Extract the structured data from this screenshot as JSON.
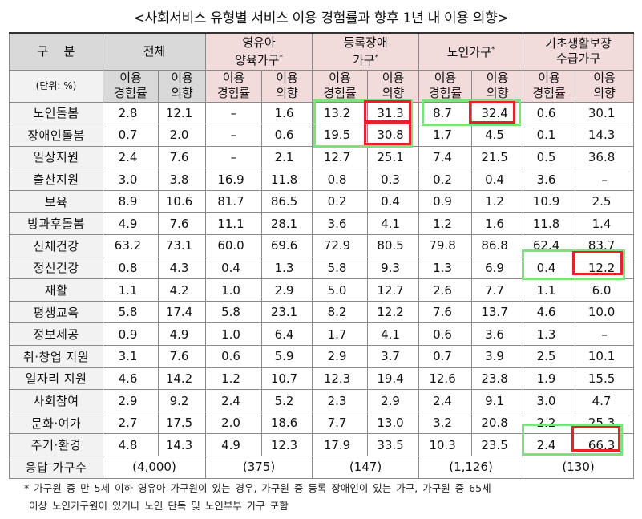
{
  "title": "<사회서비스 유형별 서비스 이용 경험률과 향후 1년 내 이용 의향>",
  "header": {
    "category": "구    분",
    "unit": "(단위: %)",
    "groups": [
      {
        "line1": "전체",
        "line2": "",
        "mark": ""
      },
      {
        "line1": "영유아",
        "line2": "양육가구",
        "mark": "*"
      },
      {
        "line1": "등록장애",
        "line2": "가구",
        "mark": "*"
      },
      {
        "line1": "노인가구",
        "line2": "",
        "mark": "*"
      },
      {
        "line1": "기초생활보장",
        "line2": "수급가구",
        "mark": ""
      }
    ],
    "sub_use": "이용",
    "sub_exp": "경험률",
    "sub_int": "의향"
  },
  "rows": [
    {
      "label": "노인돌봄",
      "values": [
        "2.8",
        "12.1",
        "–",
        "1.6",
        "13.2",
        "31.3",
        "8.7",
        "32.4",
        "0.6",
        "30.1"
      ]
    },
    {
      "label": "장애인돌봄",
      "values": [
        "0.7",
        "2.0",
        "–",
        "0.6",
        "19.5",
        "30.8",
        "1.7",
        "4.5",
        "0.1",
        "14.3"
      ]
    },
    {
      "label": "일상지원",
      "values": [
        "2.4",
        "7.6",
        "–",
        "2.1",
        "12.7",
        "25.1",
        "7.4",
        "21.5",
        "0.5",
        "36.8"
      ]
    },
    {
      "label": "출산지원",
      "values": [
        "3.0",
        "3.8",
        "16.9",
        "11.8",
        "0.8",
        "0.3",
        "0.2",
        "0.4",
        "3.6",
        "–"
      ]
    },
    {
      "label": "보육",
      "values": [
        "8.9",
        "10.6",
        "81.7",
        "86.5",
        "0.2",
        "0.4",
        "0.9",
        "1.2",
        "10.9",
        "2.5"
      ]
    },
    {
      "label": "방과후돌봄",
      "values": [
        "4.9",
        "7.6",
        "11.1",
        "28.1",
        "3.6",
        "4.1",
        "1.2",
        "1.6",
        "11.8",
        "1.4"
      ]
    },
    {
      "label": "신체건강",
      "values": [
        "63.2",
        "73.1",
        "60.0",
        "69.6",
        "72.9",
        "80.5",
        "79.8",
        "86.8",
        "62.4",
        "83.7"
      ]
    },
    {
      "label": "정신건강",
      "values": [
        "0.8",
        "4.3",
        "0.4",
        "1.3",
        "5.8",
        "9.3",
        "1.3",
        "6.9",
        "0.4",
        "12.2"
      ]
    },
    {
      "label": "재활",
      "values": [
        "1.1",
        "4.2",
        "1.0",
        "2.9",
        "5.0",
        "12.7",
        "2.6",
        "7.7",
        "1.1",
        "6.0"
      ]
    },
    {
      "label": "평생교육",
      "values": [
        "5.8",
        "17.4",
        "5.8",
        "23.1",
        "8.2",
        "12.2",
        "7.6",
        "13.7",
        "4.6",
        "10.0"
      ]
    },
    {
      "label": "정보제공",
      "values": [
        "0.9",
        "4.9",
        "1.0",
        "6.4",
        "1.7",
        "4.1",
        "0.6",
        "3.6",
        "1.3",
        "–"
      ]
    },
    {
      "label": "취·창업 지원",
      "values": [
        "3.1",
        "7.6",
        "0.6",
        "5.9",
        "2.9",
        "3.7",
        "0.7",
        "3.9",
        "2.5",
        "10.1"
      ]
    },
    {
      "label": "일자리 지원",
      "values": [
        "4.6",
        "14.2",
        "1.2",
        "10.7",
        "12.3",
        "19.4",
        "12.6",
        "23.8",
        "1.9",
        "15.5"
      ]
    },
    {
      "label": "사회참여",
      "values": [
        "2.9",
        "9.2",
        "2.4",
        "5.2",
        "2.3",
        "2.9",
        "2.4",
        "9.1",
        "3.0",
        "4.7"
      ]
    },
    {
      "label": "문화·여가",
      "values": [
        "2.7",
        "17.5",
        "2.0",
        "18.6",
        "7.7",
        "13.0",
        "3.2",
        "20.8",
        "2.2",
        "25.3"
      ]
    },
    {
      "label": "주거·환경",
      "values": [
        "4.8",
        "14.3",
        "4.9",
        "12.3",
        "17.9",
        "33.5",
        "10.3",
        "23.5",
        "2.4",
        "66.3"
      ]
    }
  ],
  "totals": {
    "label": "응답 가구수",
    "values": [
      "(4,000)",
      "(375)",
      "(147)",
      "(1,126)",
      "(130)"
    ]
  },
  "footnote": {
    "line1": "* 가구원 중 만 5세 이하 영유아 가구원이 있는 경우, 가구원 중 등록 장애인이 있는 가구, 가구원 중 65세",
    "line2": "이상 노인가구원이 있거나 노인 단독 및 노인부부 가구 포함"
  },
  "colors": {
    "highlight_green": "#7fe07f",
    "highlight_red": "#e8202a",
    "header_gray": "#d9d9d9",
    "header_pink": "#f2dcdb"
  }
}
